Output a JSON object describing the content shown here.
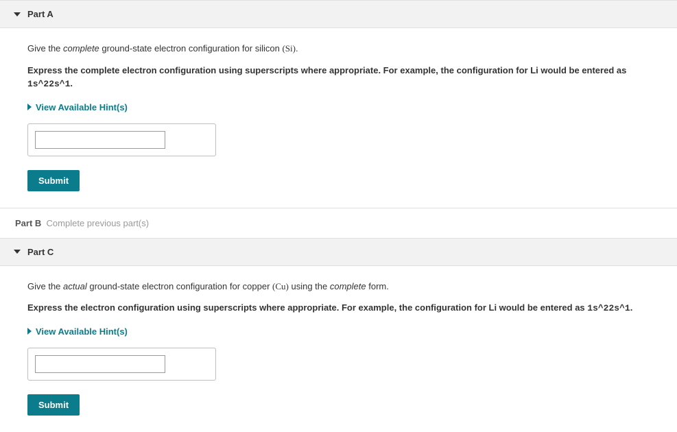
{
  "colors": {
    "accent": "#0b7c8c",
    "header_bg": "#f2f2f2",
    "border": "#e0e0e0",
    "text": "#333333",
    "muted": "#999999"
  },
  "parts": {
    "a": {
      "title": "Part A",
      "q_prefix": "Give the ",
      "q_em": "complete",
      "q_mid": " ground-state electron configuration for silicon ",
      "q_symbol": "(Si)",
      "q_suffix": ".",
      "instruction_prefix": "Express the complete electron configuration using superscripts where appropriate. For example, the configuration for Li would be entered as ",
      "instruction_mono": "1s^22s^1",
      "instruction_suffix": ".",
      "hints_label": "View Available Hint(s)",
      "input_value": "",
      "submit_label": "Submit"
    },
    "b": {
      "title": "Part B",
      "status": "Complete previous part(s)"
    },
    "c": {
      "title": "Part C",
      "q_prefix": "Give the ",
      "q_em1": "actual",
      "q_mid1": " ground-state electron configuration for copper ",
      "q_symbol": "(Cu)",
      "q_mid2": " using the ",
      "q_em2": "complete",
      "q_suffix": " form.",
      "instruction_prefix": "Express the electron configuration using superscripts where appropriate. For example, the configuration for Li would be entered as ",
      "instruction_mono": "1s^22s^1",
      "instruction_suffix": ".",
      "hints_label": "View Available Hint(s)",
      "input_value": "",
      "submit_label": "Submit"
    }
  }
}
